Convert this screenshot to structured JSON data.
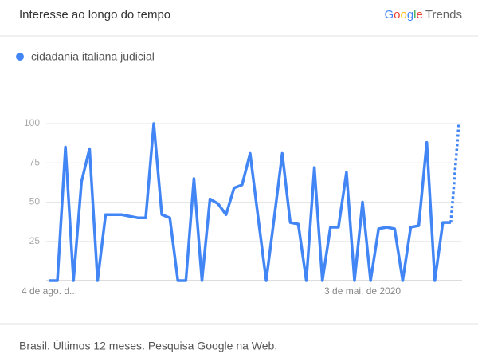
{
  "header": {
    "title": "Interesse ao longo do tempo",
    "brand": {
      "google": "Google",
      "product": "Trends"
    }
  },
  "chart_data": {
    "type": "line",
    "categories": [
      "4 de ago. d...",
      null,
      null,
      null,
      null,
      null,
      null,
      null,
      null,
      null,
      null,
      null,
      null,
      null,
      null,
      null,
      null,
      null,
      null,
      null,
      null,
      null,
      null,
      null,
      null,
      null,
      null,
      null,
      null,
      null,
      null,
      null,
      null,
      null,
      null,
      null,
      null,
      null,
      null,
      "3 de mai. de 2020",
      null,
      null,
      null,
      null,
      null,
      null,
      null,
      null,
      null,
      null,
      null,
      null
    ],
    "series": [
      {
        "name": "cidadania italiana judicial",
        "color": "#4285f4",
        "values": [
          0,
          0,
          85,
          0,
          63,
          84,
          0,
          42,
          42,
          42,
          41,
          40,
          40,
          100,
          42,
          40,
          0,
          0,
          65,
          0,
          52,
          49,
          42,
          59,
          61,
          81,
          40,
          0,
          40,
          81,
          37,
          36,
          0,
          72,
          0,
          34,
          34,
          69,
          0,
          50,
          0,
          33,
          34,
          33,
          0,
          34,
          35,
          88,
          0,
          37,
          37,
          100
        ]
      }
    ],
    "partial_last_point": true,
    "ylim": [
      0,
      100
    ],
    "yticks": [
      25,
      50,
      75,
      100
    ],
    "grid": true,
    "legend": "top-left"
  },
  "footer": {
    "text": "Brasil. Últimos 12 meses. Pesquisa Google na Web."
  }
}
